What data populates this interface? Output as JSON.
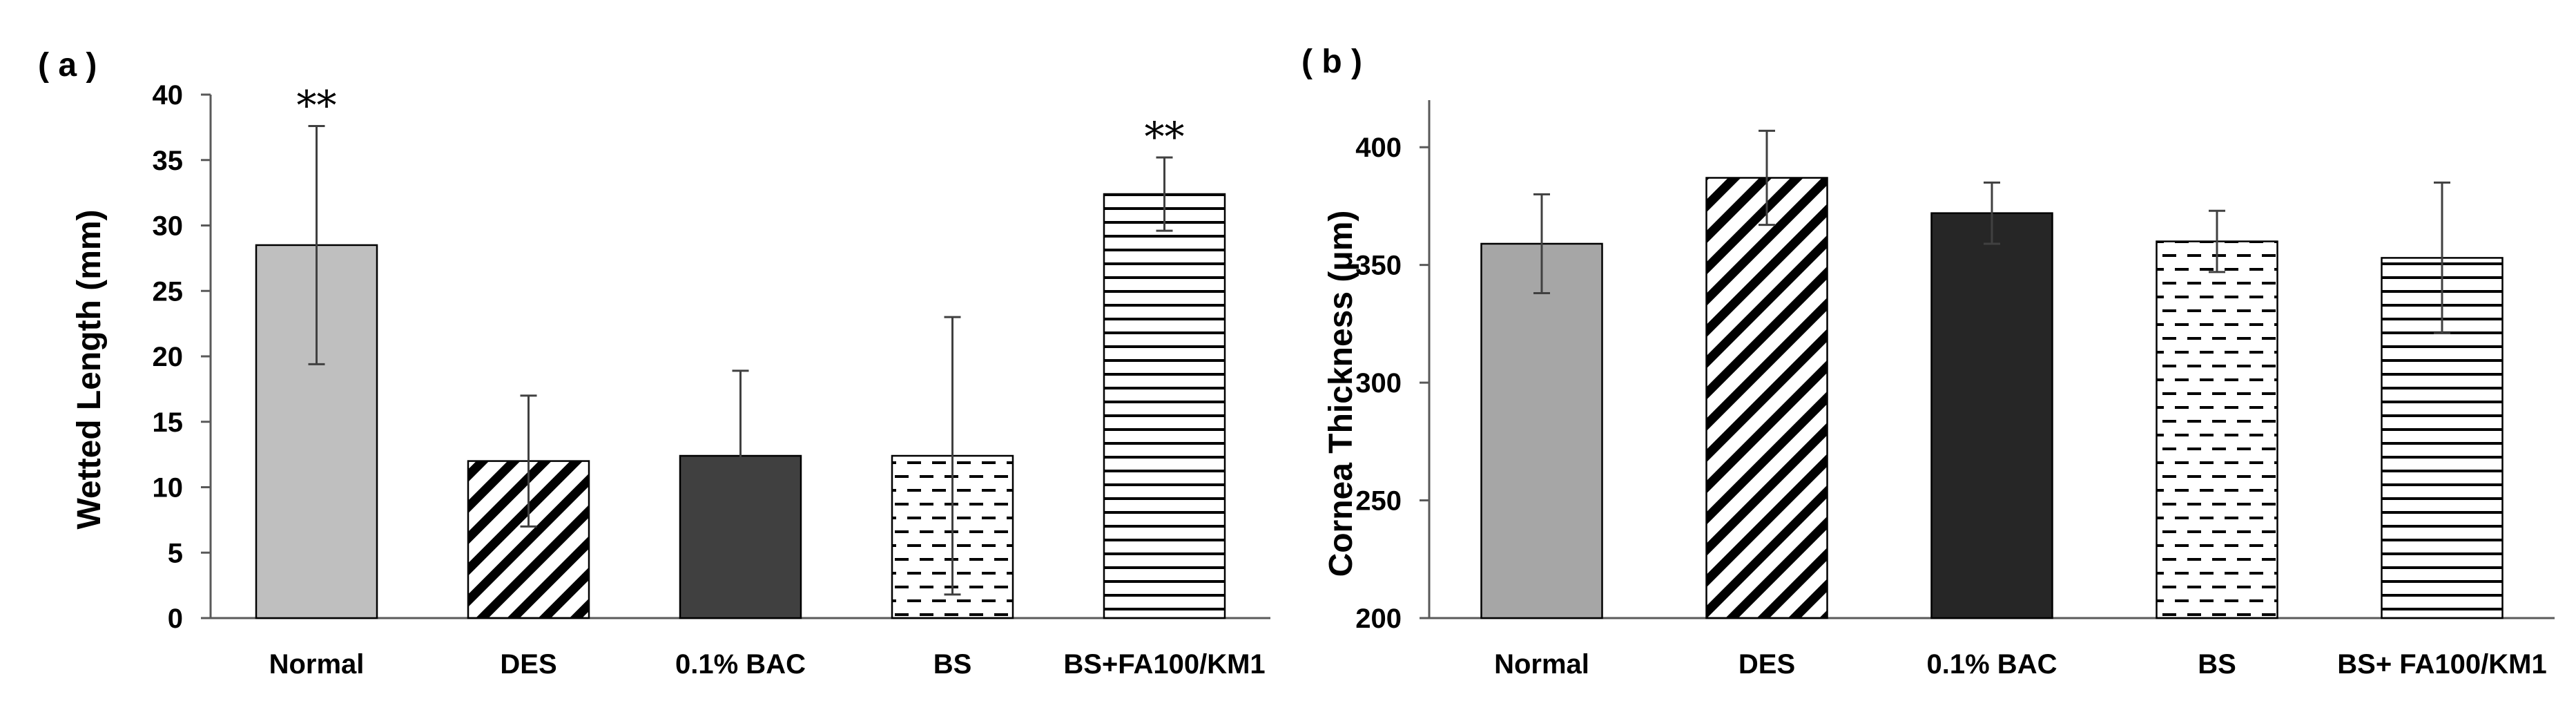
{
  "chart_data": [
    {
      "panel_label": "( a )",
      "type": "bar",
      "categories": [
        "Normal",
        "DES",
        "0.1% BAC",
        "BS",
        "BS+FA100/KM1"
      ],
      "values": [
        28.5,
        12.0,
        12.4,
        12.4,
        32.4
      ],
      "errors": [
        9.1,
        5.0,
        6.5,
        10.6,
        2.8
      ],
      "annotations": [
        "**",
        "",
        "",
        "",
        "**"
      ],
      "patterns": [
        "solid-lightgray",
        "diagonal",
        "solid-darkgray",
        "dashes",
        "horizontal"
      ],
      "ylabel": "Wetted Length (mm)",
      "ylim": [
        0,
        40
      ],
      "yticks": [
        0,
        5,
        10,
        15,
        20,
        25,
        30,
        35,
        40
      ],
      "grid": false
    },
    {
      "panel_label": "( b )",
      "type": "bar",
      "categories": [
        "Normal",
        "DES",
        "0.1% BAC",
        "BS",
        "BS+ FA100/KM1"
      ],
      "values": [
        359,
        387,
        372,
        360,
        353
      ],
      "errors": [
        21,
        20,
        13,
        13,
        32
      ],
      "annotations": [
        "",
        "",
        "",
        "",
        ""
      ],
      "patterns": [
        "solid-gray",
        "diagonal",
        "solid-black",
        "dashes",
        "horizontal"
      ],
      "ylabel": "Cornea Thickness (μm)",
      "ylim": [
        200,
        420
      ],
      "yticks": [
        200,
        250,
        300,
        350,
        400
      ],
      "grid": false
    }
  ],
  "colors": {
    "axis": "#595959",
    "bar_outline": "#000000",
    "error_bar": "#404040",
    "solid-lightgray": "#bfbfbf",
    "solid-darkgray": "#404040",
    "solid-gray": "#a6a6a6",
    "solid-black": "#262626"
  }
}
